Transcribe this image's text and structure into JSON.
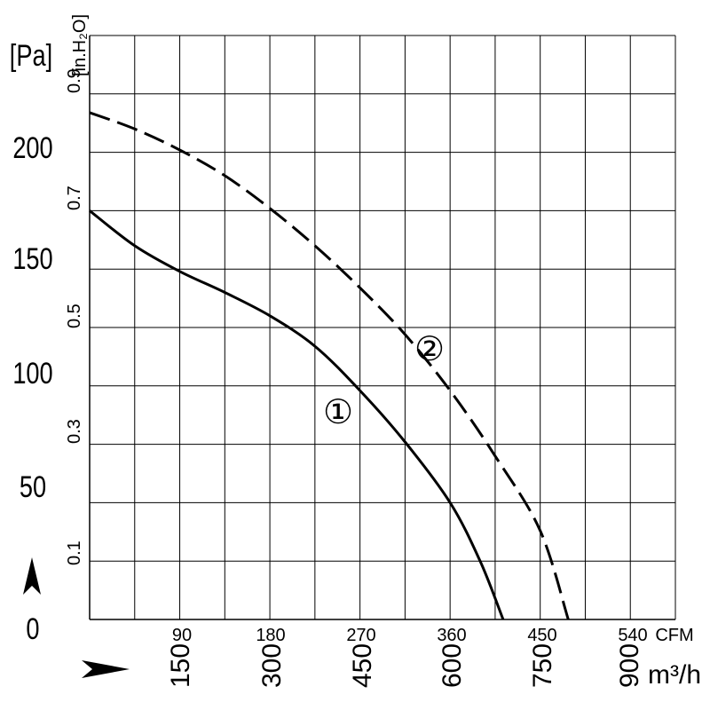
{
  "chart_data": {
    "type": "line",
    "xlabel": "",
    "ylabel": "",
    "x_unit_primary": "CFM",
    "x_unit_secondary": "m³/h",
    "y_unit_primary": "[Pa]",
    "y_unit_secondary": "[in.H₂O]",
    "xlim_cfm": [
      0,
      585
    ],
    "ylim_pa": [
      0,
      250
    ],
    "grid": true,
    "x_ticks_cfm": [
      "90",
      "180",
      "270",
      "360",
      "450",
      "540"
    ],
    "x_ticks_m3h": [
      "150",
      "300",
      "450",
      "600",
      "750",
      "900"
    ],
    "y_ticks_pa": [
      "0",
      "50",
      "100",
      "150",
      "200"
    ],
    "y_ticks_inh2o": [
      "0.1",
      "0.3",
      "0.5",
      "0.7",
      "0.9"
    ],
    "series": [
      {
        "name": "①",
        "style": "solid",
        "x": [
          0,
          45,
          90,
          135,
          180,
          225,
          270,
          315,
          360,
          390,
          413
        ],
        "y": [
          175,
          160,
          149,
          140,
          130,
          117,
          98,
          76,
          50,
          25,
          0
        ]
      },
      {
        "name": "②",
        "style": "dashed",
        "x": [
          0,
          45,
          90,
          135,
          180,
          225,
          270,
          315,
          360,
          405,
          450,
          478
        ],
        "y": [
          217,
          210,
          201,
          190,
          176,
          160,
          142,
          122,
          98,
          70,
          38,
          0
        ]
      }
    ]
  }
}
